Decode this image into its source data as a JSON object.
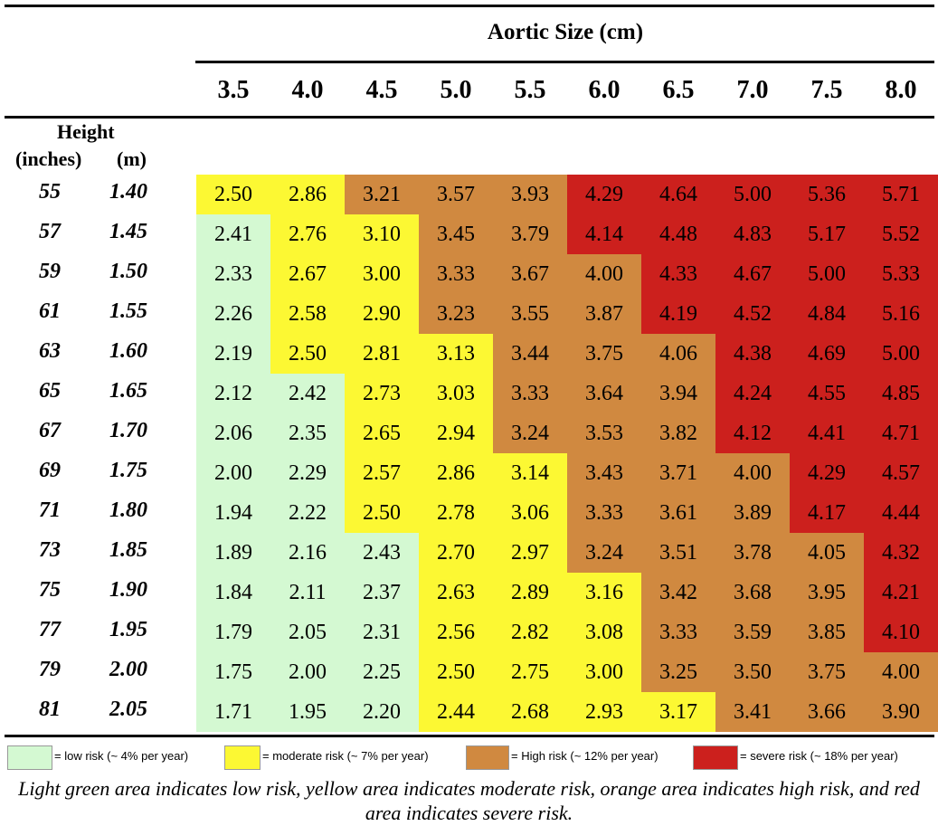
{
  "chart_data": {
    "type": "heatmap",
    "title": "Aortic Size (cm)",
    "row_header": [
      "Height",
      "(inches)",
      "(m)"
    ],
    "columns": [
      "3.5",
      "4.0",
      "4.5",
      "5.0",
      "5.5",
      "6.0",
      "6.5",
      "7.0",
      "7.5",
      "8.0"
    ],
    "rows": [
      {
        "inches": "55",
        "m": "1.40",
        "values": [
          "2.50",
          "2.86",
          "3.21",
          "3.57",
          "3.93",
          "4.29",
          "4.64",
          "5.00",
          "5.36",
          "5.71"
        ],
        "risk": [
          "Y",
          "Y",
          "O",
          "O",
          "O",
          "R",
          "R",
          "R",
          "R",
          "R"
        ]
      },
      {
        "inches": "57",
        "m": "1.45",
        "values": [
          "2.41",
          "2.76",
          "3.10",
          "3.45",
          "3.79",
          "4.14",
          "4.48",
          "4.83",
          "5.17",
          "5.52"
        ],
        "risk": [
          "G",
          "Y",
          "Y",
          "O",
          "O",
          "R",
          "R",
          "R",
          "R",
          "R"
        ]
      },
      {
        "inches": "59",
        "m": "1.50",
        "values": [
          "2.33",
          "2.67",
          "3.00",
          "3.33",
          "3.67",
          "4.00",
          "4.33",
          "4.67",
          "5.00",
          "5.33"
        ],
        "risk": [
          "G",
          "Y",
          "Y",
          "O",
          "O",
          "O",
          "R",
          "R",
          "R",
          "R"
        ]
      },
      {
        "inches": "61",
        "m": "1.55",
        "values": [
          "2.26",
          "2.58",
          "2.90",
          "3.23",
          "3.55",
          "3.87",
          "4.19",
          "4.52",
          "4.84",
          "5.16"
        ],
        "risk": [
          "G",
          "Y",
          "Y",
          "O",
          "O",
          "O",
          "R",
          "R",
          "R",
          "R"
        ]
      },
      {
        "inches": "63",
        "m": "1.60",
        "values": [
          "2.19",
          "2.50",
          "2.81",
          "3.13",
          "3.44",
          "3.75",
          "4.06",
          "4.38",
          "4.69",
          "5.00"
        ],
        "risk": [
          "G",
          "Y",
          "Y",
          "Y",
          "O",
          "O",
          "O",
          "R",
          "R",
          "R"
        ]
      },
      {
        "inches": "65",
        "m": "1.65",
        "values": [
          "2.12",
          "2.42",
          "2.73",
          "3.03",
          "3.33",
          "3.64",
          "3.94",
          "4.24",
          "4.55",
          "4.85"
        ],
        "risk": [
          "G",
          "G",
          "Y",
          "Y",
          "O",
          "O",
          "O",
          "R",
          "R",
          "R"
        ]
      },
      {
        "inches": "67",
        "m": "1.70",
        "values": [
          "2.06",
          "2.35",
          "2.65",
          "2.94",
          "3.24",
          "3.53",
          "3.82",
          "4.12",
          "4.41",
          "4.71"
        ],
        "risk": [
          "G",
          "G",
          "Y",
          "Y",
          "O",
          "O",
          "O",
          "R",
          "R",
          "R"
        ]
      },
      {
        "inches": "69",
        "m": "1.75",
        "values": [
          "2.00",
          "2.29",
          "2.57",
          "2.86",
          "3.14",
          "3.43",
          "3.71",
          "4.00",
          "4.29",
          "4.57"
        ],
        "risk": [
          "G",
          "G",
          "Y",
          "Y",
          "Y",
          "O",
          "O",
          "O",
          "R",
          "R"
        ]
      },
      {
        "inches": "71",
        "m": "1.80",
        "values": [
          "1.94",
          "2.22",
          "2.50",
          "2.78",
          "3.06",
          "3.33",
          "3.61",
          "3.89",
          "4.17",
          "4.44"
        ],
        "risk": [
          "G",
          "G",
          "Y",
          "Y",
          "Y",
          "O",
          "O",
          "O",
          "R",
          "R"
        ]
      },
      {
        "inches": "73",
        "m": "1.85",
        "values": [
          "1.89",
          "2.16",
          "2.43",
          "2.70",
          "2.97",
          "3.24",
          "3.51",
          "3.78",
          "4.05",
          "4.32"
        ],
        "risk": [
          "G",
          "G",
          "G",
          "Y",
          "Y",
          "O",
          "O",
          "O",
          "O",
          "R"
        ]
      },
      {
        "inches": "75",
        "m": "1.90",
        "values": [
          "1.84",
          "2.11",
          "2.37",
          "2.63",
          "2.89",
          "3.16",
          "3.42",
          "3.68",
          "3.95",
          "4.21"
        ],
        "risk": [
          "G",
          "G",
          "G",
          "Y",
          "Y",
          "Y",
          "O",
          "O",
          "O",
          "R"
        ]
      },
      {
        "inches": "77",
        "m": "1.95",
        "values": [
          "1.79",
          "2.05",
          "2.31",
          "2.56",
          "2.82",
          "3.08",
          "3.33",
          "3.59",
          "3.85",
          "4.10"
        ],
        "risk": [
          "G",
          "G",
          "G",
          "Y",
          "Y",
          "Y",
          "O",
          "O",
          "O",
          "R"
        ]
      },
      {
        "inches": "79",
        "m": "2.00",
        "values": [
          "1.75",
          "2.00",
          "2.25",
          "2.50",
          "2.75",
          "3.00",
          "3.25",
          "3.50",
          "3.75",
          "4.00"
        ],
        "risk": [
          "G",
          "G",
          "G",
          "Y",
          "Y",
          "Y",
          "O",
          "O",
          "O",
          "O"
        ]
      },
      {
        "inches": "81",
        "m": "2.05",
        "values": [
          "1.71",
          "1.95",
          "2.20",
          "2.44",
          "2.68",
          "2.93",
          "3.17",
          "3.41",
          "3.66",
          "3.90"
        ],
        "risk": [
          "G",
          "G",
          "G",
          "Y",
          "Y",
          "Y",
          "Y",
          "O",
          "O",
          "O"
        ]
      }
    ],
    "colors": {
      "G": "#d4f9d2",
      "Y": "#fcf833",
      "O": "#d08940",
      "R": "#cc201d"
    },
    "legend": [
      {
        "key": "G",
        "label": "= low risk (~ 4% per year)"
      },
      {
        "key": "Y",
        "label": "= moderate risk (~ 7% per year)"
      },
      {
        "key": "O",
        "label": "= High risk (~ 12% per year)"
      },
      {
        "key": "R",
        "label": "= severe risk (~ 18% per year)"
      }
    ]
  },
  "caption": "Light green area indicates low risk, yellow area indicates moderate risk, orange area indicates high risk, and red area indicates severe risk."
}
